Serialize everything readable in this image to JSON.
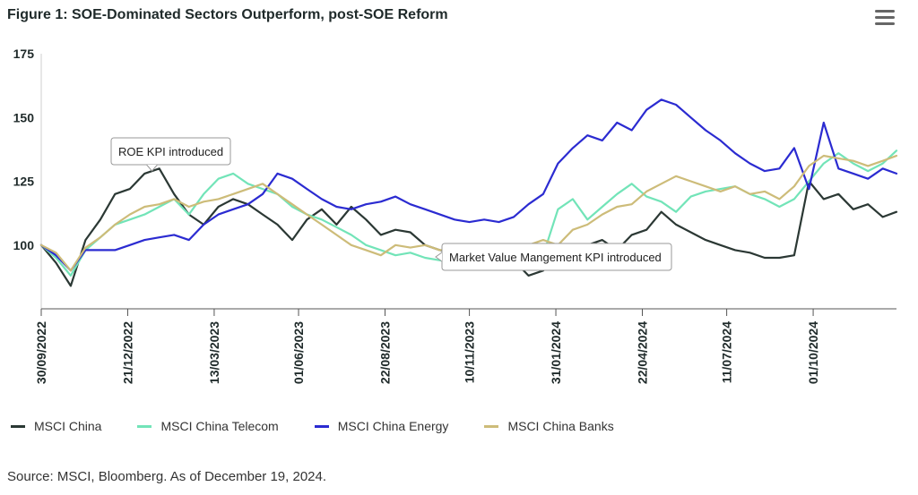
{
  "header": {
    "title": "Figure 1: SOE-Dominated Sectors Outperform, post-SOE Reform",
    "menu_icon": "hamburger-menu-icon"
  },
  "footer": {
    "source": "Source: MSCI, Bloomberg. As of December 19, 2024."
  },
  "chart_data": {
    "type": "line",
    "title": "Figure 1: SOE-Dominated Sectors Outperform, post-SOE Reform",
    "xlabel": "",
    "ylabel": "",
    "ylim": [
      75,
      175
    ],
    "yticks": [
      100,
      125,
      150,
      175
    ],
    "xlim": [
      "2022-09-30",
      "2024-12-19"
    ],
    "xticks": [
      "30/09/2022",
      "21/12/2022",
      "13/03/2023",
      "01/06/2023",
      "22/08/2023",
      "10/11/2023",
      "31/01/2024",
      "22/04/2024",
      "11/07/2024",
      "01/10/2024"
    ],
    "grid": false,
    "legend_position": "bottom",
    "x": [
      "2022-09-30",
      "2022-10-14",
      "2022-10-28",
      "2022-11-11",
      "2022-11-25",
      "2022-12-09",
      "2022-12-23",
      "2023-01-06",
      "2023-01-20",
      "2023-02-03",
      "2023-02-17",
      "2023-03-03",
      "2023-03-17",
      "2023-03-31",
      "2023-04-14",
      "2023-04-28",
      "2023-05-12",
      "2023-05-26",
      "2023-06-09",
      "2023-06-23",
      "2023-07-07",
      "2023-07-21",
      "2023-08-04",
      "2023-08-18",
      "2023-09-01",
      "2023-09-15",
      "2023-09-29",
      "2023-10-13",
      "2023-10-27",
      "2023-11-10",
      "2023-11-24",
      "2023-12-08",
      "2023-12-22",
      "2024-01-05",
      "2024-01-19",
      "2024-02-02",
      "2024-02-16",
      "2024-03-01",
      "2024-03-15",
      "2024-03-29",
      "2024-04-12",
      "2024-04-26",
      "2024-05-10",
      "2024-05-24",
      "2024-06-07",
      "2024-06-21",
      "2024-07-05",
      "2024-07-19",
      "2024-08-02",
      "2024-08-16",
      "2024-08-30",
      "2024-09-13",
      "2024-09-27",
      "2024-10-11",
      "2024-10-25",
      "2024-11-08",
      "2024-11-22",
      "2024-12-06",
      "2024-12-19"
    ],
    "series": [
      {
        "name": "MSCI China",
        "color": "#2b3834",
        "values": [
          100,
          93,
          84,
          102,
          110,
          120,
          122,
          128,
          130,
          120,
          112,
          108,
          115,
          118,
          116,
          112,
          108,
          102,
          110,
          114,
          108,
          115,
          110,
          104,
          106,
          105,
          100,
          98,
          97,
          100,
          95,
          92,
          94,
          88,
          90,
          96,
          97,
          100,
          102,
          98,
          104,
          106,
          113,
          108,
          105,
          102,
          100,
          98,
          97,
          95,
          95,
          96,
          125,
          118,
          120,
          114,
          116,
          111,
          113
        ]
      },
      {
        "name": "MSCI China Telecom",
        "color": "#72e4b8",
        "values": [
          100,
          95,
          88,
          98,
          103,
          108,
          110,
          112,
          115,
          118,
          112,
          120,
          126,
          128,
          124,
          122,
          120,
          115,
          112,
          110,
          107,
          104,
          100,
          98,
          96,
          97,
          95,
          94,
          93,
          95,
          96,
          95,
          94,
          95,
          96,
          114,
          118,
          110,
          115,
          120,
          124,
          119,
          117,
          113,
          119,
          121,
          122,
          123,
          120,
          118,
          115,
          118,
          125,
          132,
          136,
          132,
          129,
          132,
          137
        ]
      },
      {
        "name": "MSCI China Energy",
        "color": "#2b2bd1",
        "values": [
          100,
          96,
          90,
          98,
          98,
          98,
          100,
          102,
          103,
          104,
          102,
          108,
          112,
          114,
          116,
          120,
          128,
          126,
          122,
          118,
          115,
          114,
          116,
          117,
          119,
          116,
          114,
          112,
          110,
          109,
          110,
          109,
          111,
          116,
          120,
          132,
          138,
          143,
          141,
          148,
          145,
          153,
          157,
          155,
          150,
          145,
          141,
          136,
          132,
          129,
          130,
          138,
          122,
          148,
          130,
          128,
          126,
          130,
          128
        ]
      },
      {
        "name": "MSCI China Banks",
        "color": "#cdbc79",
        "values": [
          100,
          97,
          90,
          99,
          103,
          108,
          112,
          115,
          116,
          118,
          115,
          117,
          118,
          120,
          122,
          124,
          120,
          116,
          112,
          108,
          104,
          100,
          98,
          96,
          100,
          99,
          100,
          98,
          99,
          99,
          97,
          96,
          97,
          100,
          102,
          100,
          106,
          108,
          112,
          115,
          116,
          121,
          124,
          127,
          125,
          123,
          121,
          123,
          120,
          121,
          118,
          123,
          131,
          135,
          134,
          133,
          131,
          133,
          135
        ]
      }
    ],
    "annotations": [
      {
        "text": "ROE KPI introduced",
        "x": "2023-01-13"
      },
      {
        "text": "Market Value Mangement KPI introduced",
        "x": "2024-01-24"
      }
    ]
  }
}
